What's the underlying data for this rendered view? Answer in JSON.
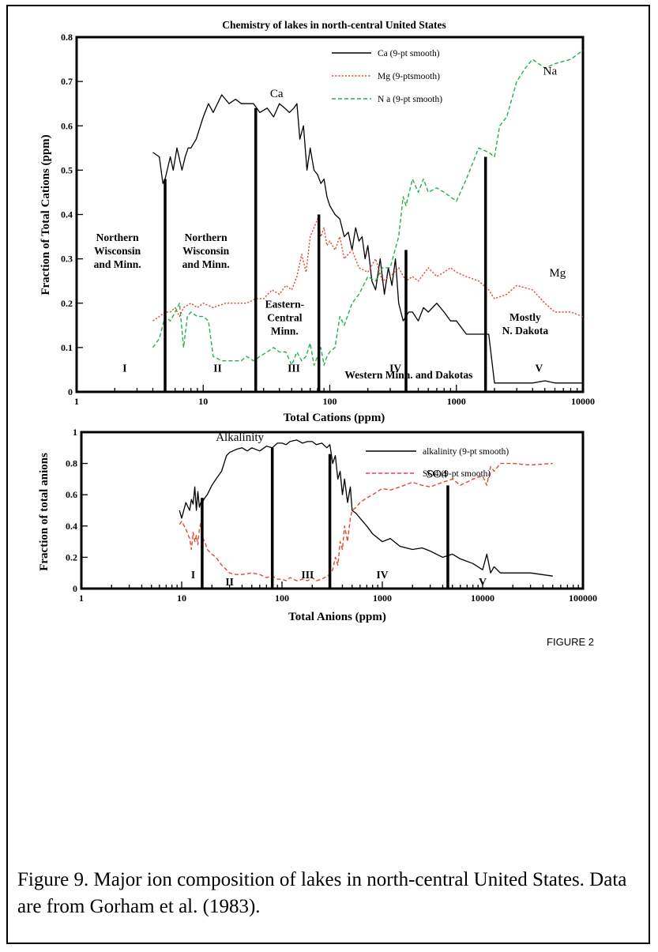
{
  "caption": "Figure 9.  Major ion composition of lakes in north-central United States.  Data are from Gorham et al. (1983).",
  "figure_tag": "FIGURE 2",
  "colors": {
    "Ca": "#000000",
    "Mg": "#e24a33",
    "Na": "#22b14c",
    "alkalinity": "#000000",
    "SO4": "#e24a33"
  },
  "chart_data": [
    {
      "type": "line",
      "title": "Chemistry of lakes in north-central United States",
      "xlabel": "Total Cations (ppm)",
      "ylabel": "Fraction of Total Cations (ppm)",
      "xscale": "log",
      "xlim": [
        1,
        10000
      ],
      "ylim": [
        0,
        0.8
      ],
      "xticks": [
        1,
        10,
        100,
        1000,
        10000
      ],
      "xtick_labels": [
        "1",
        "10",
        "100",
        "1000",
        "10000"
      ],
      "yticks": [
        0,
        0.1,
        0.2,
        0.3,
        0.4,
        0.5,
        0.6,
        0.7,
        0.8
      ],
      "ytick_labels": [
        "0",
        "0.1",
        "0.2",
        "0.3",
        "0.4",
        "0.5",
        "0.6",
        "0.7",
        "0.8"
      ],
      "legend_position": "top-right",
      "series": [
        {
          "name": "Ca (9-pt smooth)",
          "label": "Ca",
          "style": "solid",
          "color": "#000000",
          "x": [
            4,
            4.5,
            4.8,
            5,
            5.5,
            5.8,
            6.2,
            6.8,
            7.2,
            7.6,
            8,
            8.8,
            10,
            11,
            12,
            14,
            16,
            18,
            20,
            22,
            25,
            28,
            32,
            36,
            40,
            44,
            48,
            52,
            55,
            58,
            62,
            66,
            70,
            75,
            80,
            85,
            90,
            95,
            100,
            110,
            120,
            130,
            140,
            150,
            160,
            170,
            180,
            190,
            200,
            215,
            230,
            250,
            270,
            290,
            310,
            330,
            350,
            380,
            400,
            420,
            450,
            500,
            550,
            600,
            700,
            800,
            900,
            1000,
            1200,
            1500,
            1800,
            2000,
            2500,
            3000,
            4000,
            5000,
            6000,
            8000,
            10000
          ],
          "y": [
            0.54,
            0.53,
            0.47,
            0.48,
            0.53,
            0.5,
            0.55,
            0.5,
            0.53,
            0.55,
            0.55,
            0.57,
            0.62,
            0.65,
            0.63,
            0.67,
            0.65,
            0.66,
            0.65,
            0.65,
            0.65,
            0.63,
            0.64,
            0.62,
            0.65,
            0.64,
            0.63,
            0.64,
            0.65,
            0.57,
            0.6,
            0.5,
            0.55,
            0.5,
            0.49,
            0.47,
            0.48,
            0.44,
            0.42,
            0.4,
            0.39,
            0.35,
            0.36,
            0.32,
            0.37,
            0.34,
            0.35,
            0.3,
            0.33,
            0.25,
            0.23,
            0.3,
            0.22,
            0.28,
            0.24,
            0.3,
            0.2,
            0.16,
            0.17,
            0.18,
            0.18,
            0.16,
            0.19,
            0.18,
            0.2,
            0.18,
            0.16,
            0.16,
            0.13,
            0.13,
            0.13,
            0.02,
            0.02,
            0.02,
            0.02,
            0.025,
            0.02,
            0.02,
            0.02
          ]
        },
        {
          "name": "Mg (9-ptsmooth)",
          "label": "Mg",
          "style": "dotted",
          "color": "#e24a33",
          "x": [
            4,
            4.5,
            5,
            5.5,
            6,
            6.5,
            7,
            8,
            9,
            10,
            12,
            15,
            18,
            22,
            26,
            30,
            35,
            40,
            45,
            50,
            55,
            60,
            65,
            70,
            75,
            80,
            85,
            90,
            95,
            100,
            110,
            120,
            130,
            150,
            170,
            200,
            230,
            260,
            300,
            350,
            400,
            450,
            500,
            600,
            700,
            800,
            900,
            1000,
            1200,
            1500,
            1800,
            2000,
            2500,
            3000,
            4000,
            5000,
            6000,
            8000,
            10000
          ],
          "y": [
            0.16,
            0.17,
            0.18,
            0.18,
            0.19,
            0.17,
            0.19,
            0.2,
            0.19,
            0.2,
            0.19,
            0.2,
            0.2,
            0.2,
            0.21,
            0.21,
            0.23,
            0.22,
            0.24,
            0.23,
            0.26,
            0.31,
            0.27,
            0.35,
            0.37,
            0.39,
            0.35,
            0.37,
            0.33,
            0.34,
            0.32,
            0.35,
            0.3,
            0.32,
            0.28,
            0.27,
            0.3,
            0.25,
            0.26,
            0.28,
            0.25,
            0.26,
            0.25,
            0.28,
            0.26,
            0.27,
            0.28,
            0.27,
            0.26,
            0.25,
            0.23,
            0.21,
            0.22,
            0.24,
            0.23,
            0.2,
            0.18,
            0.18,
            0.17
          ]
        },
        {
          "name": "N a  (9-pt smooth)",
          "label": "Na",
          "style": "dashed",
          "color": "#22b14c",
          "x": [
            4,
            4.5,
            5,
            5.5,
            6,
            6.5,
            7,
            7.5,
            8,
            9,
            10,
            11,
            12,
            14,
            16,
            18,
            20,
            22,
            25,
            28,
            32,
            36,
            40,
            45,
            50,
            55,
            60,
            65,
            70,
            75,
            80,
            85,
            90,
            95,
            100,
            110,
            120,
            130,
            150,
            170,
            200,
            230,
            260,
            300,
            350,
            380,
            400,
            450,
            500,
            550,
            600,
            700,
            800,
            900,
            1000,
            1200,
            1500,
            1800,
            2000,
            2200,
            2500,
            3000,
            3500,
            4000,
            5000,
            6000,
            8000,
            10000
          ],
          "y": [
            0.1,
            0.12,
            0.17,
            0.16,
            0.18,
            0.2,
            0.1,
            0.17,
            0.18,
            0.17,
            0.17,
            0.16,
            0.08,
            0.07,
            0.07,
            0.07,
            0.07,
            0.08,
            0.07,
            0.08,
            0.09,
            0.1,
            0.09,
            0.09,
            0.06,
            0.09,
            0.07,
            0.08,
            0.11,
            0.06,
            0.08,
            0.1,
            0.06,
            0.08,
            0.09,
            0.1,
            0.17,
            0.15,
            0.2,
            0.22,
            0.26,
            0.25,
            0.28,
            0.28,
            0.35,
            0.44,
            0.42,
            0.48,
            0.45,
            0.48,
            0.45,
            0.46,
            0.45,
            0.44,
            0.43,
            0.48,
            0.55,
            0.54,
            0.53,
            0.6,
            0.62,
            0.7,
            0.73,
            0.75,
            0.73,
            0.74,
            0.75,
            0.77
          ]
        }
      ],
      "dividers_x": [
        5,
        26,
        82,
        400,
        1700
      ],
      "divider_tops": [
        0.48,
        0.64,
        0.4,
        0.32,
        0.53
      ],
      "annotations": [
        {
          "text": [
            "Northern",
            "Wisconsin",
            "and Minn."
          ],
          "x": 2.1,
          "y": 0.34
        },
        {
          "text": [
            "Northern",
            "Wisconsin",
            "and Minn."
          ],
          "x": 10.5,
          "y": 0.34
        },
        {
          "text": [
            "Eastern-",
            "Central",
            "Minn."
          ],
          "x": 44,
          "y": 0.19
        },
        {
          "text": [
            "Western Minn. and Dakotas"
          ],
          "x": 420,
          "y": 0.03
        },
        {
          "text": [
            "Mostly",
            "N. Dakota"
          ],
          "x": 3500,
          "y": 0.16
        },
        {
          "text": [
            "I"
          ],
          "x": 2.4,
          "y": 0.045
        },
        {
          "text": [
            "II"
          ],
          "x": 13,
          "y": 0.045
        },
        {
          "text": [
            "III"
          ],
          "x": 52,
          "y": 0.045
        },
        {
          "text": [
            "IV"
          ],
          "x": 330,
          "y": 0.045
        },
        {
          "text": [
            "V"
          ],
          "x": 4500,
          "y": 0.045
        }
      ],
      "series_labels": [
        {
          "text": "Ca",
          "x": 38,
          "y": 0.665
        },
        {
          "text": "Mg",
          "x": 6300,
          "y": 0.26
        },
        {
          "text": "Na",
          "x": 5500,
          "y": 0.715
        }
      ]
    },
    {
      "type": "line",
      "xlabel": "Total Anions (ppm)",
      "ylabel": "Fraction of total anions",
      "xscale": "log",
      "xlim": [
        1,
        100000
      ],
      "ylim": [
        0,
        1
      ],
      "xticks": [
        1,
        10,
        100,
        1000,
        10000,
        100000
      ],
      "xtick_labels": [
        "1",
        "10",
        "100",
        "1000",
        "10000",
        "100000"
      ],
      "yticks": [
        0,
        0.2,
        0.4,
        0.6,
        0.8,
        1
      ],
      "ytick_labels": [
        "0",
        "0.2",
        "0.4",
        "0.6",
        "0.8",
        "1"
      ],
      "legend_position": "top-right",
      "series": [
        {
          "name": "alkalinity (9-pt smooth)",
          "label": "Alkalinity",
          "style": "solid",
          "color": "#000000",
          "x": [
            9.5,
            10,
            11,
            12,
            12.5,
            13,
            13.5,
            14,
            14.5,
            15,
            15.5,
            16,
            17,
            18,
            20,
            22,
            25,
            28,
            30,
            35,
            40,
            45,
            50,
            60,
            70,
            80,
            90,
            100,
            110,
            120,
            140,
            160,
            180,
            200,
            220,
            250,
            280,
            300,
            320,
            340,
            360,
            380,
            400,
            420,
            450,
            480,
            500,
            550,
            600,
            700,
            800,
            1000,
            1200,
            1500,
            2000,
            2500,
            3000,
            4000,
            5000,
            6000,
            8000,
            10000,
            11000,
            12000,
            13000,
            15000,
            20000,
            30000,
            50000
          ],
          "y": [
            0.5,
            0.45,
            0.55,
            0.5,
            0.57,
            0.54,
            0.65,
            0.5,
            0.62,
            0.52,
            0.55,
            0.55,
            0.58,
            0.6,
            0.66,
            0.7,
            0.75,
            0.85,
            0.87,
            0.89,
            0.9,
            0.88,
            0.9,
            0.88,
            0.91,
            0.9,
            0.93,
            0.93,
            0.92,
            0.94,
            0.95,
            0.93,
            0.94,
            0.94,
            0.92,
            0.93,
            0.9,
            0.92,
            0.8,
            0.85,
            0.7,
            0.75,
            0.6,
            0.7,
            0.55,
            0.65,
            0.5,
            0.48,
            0.45,
            0.4,
            0.35,
            0.3,
            0.32,
            0.27,
            0.25,
            0.26,
            0.24,
            0.2,
            0.22,
            0.19,
            0.16,
            0.12,
            0.22,
            0.1,
            0.14,
            0.1,
            0.1,
            0.1,
            0.08
          ]
        },
        {
          "name": "SO4 (9-pt smooth)",
          "label": "SO4",
          "style": "dashed",
          "color": "#e24a33",
          "x": [
            9.5,
            10,
            11,
            12,
            12.5,
            13,
            13.5,
            14,
            14.5,
            15,
            15.5,
            16,
            17,
            18,
            20,
            22,
            25,
            28,
            30,
            35,
            40,
            50,
            60,
            70,
            80,
            90,
            100,
            110,
            120,
            140,
            160,
            180,
            200,
            220,
            250,
            280,
            300,
            320,
            340,
            360,
            380,
            400,
            420,
            450,
            480,
            500,
            550,
            600,
            700,
            800,
            1000,
            1200,
            1500,
            2000,
            2500,
            3000,
            4000,
            5000,
            6000,
            8000,
            10000,
            11000,
            12000,
            13000,
            15000,
            20000,
            30000,
            50000
          ],
          "y": [
            0.41,
            0.43,
            0.38,
            0.32,
            0.25,
            0.36,
            0.3,
            0.34,
            0.28,
            0.38,
            0.42,
            0.33,
            0.3,
            0.25,
            0.22,
            0.2,
            0.15,
            0.12,
            0.1,
            0.09,
            0.09,
            0.1,
            0.09,
            0.07,
            0.08,
            0.06,
            0.06,
            0.05,
            0.07,
            0.05,
            0.06,
            0.05,
            0.07,
            0.05,
            0.06,
            0.08,
            0.09,
            0.12,
            0.2,
            0.15,
            0.3,
            0.25,
            0.4,
            0.3,
            0.45,
            0.5,
            0.52,
            0.55,
            0.58,
            0.6,
            0.64,
            0.63,
            0.65,
            0.68,
            0.66,
            0.65,
            0.68,
            0.7,
            0.66,
            0.7,
            0.72,
            0.66,
            0.78,
            0.75,
            0.8,
            0.8,
            0.79,
            0.8
          ]
        }
      ],
      "dividers_x": [
        16,
        80,
        300,
        4500
      ],
      "divider_tops": [
        0.58,
        0.9,
        0.86,
        0.66
      ],
      "annotations": [
        {
          "text": [
            "I"
          ],
          "x": 13,
          "y": 0.065
        },
        {
          "text": [
            "II"
          ],
          "x": 30,
          "y": 0.02
        },
        {
          "text": [
            "III"
          ],
          "x": 180,
          "y": 0.065
        },
        {
          "text": [
            "IV"
          ],
          "x": 1000,
          "y": 0.065
        },
        {
          "text": [
            "V"
          ],
          "x": 10000,
          "y": 0.02
        }
      ],
      "series_labels": [
        {
          "text": "Alkalinity",
          "x": 38,
          "y": 0.945
        },
        {
          "text": "SO4",
          "x": 3500,
          "y": 0.71
        }
      ]
    }
  ]
}
